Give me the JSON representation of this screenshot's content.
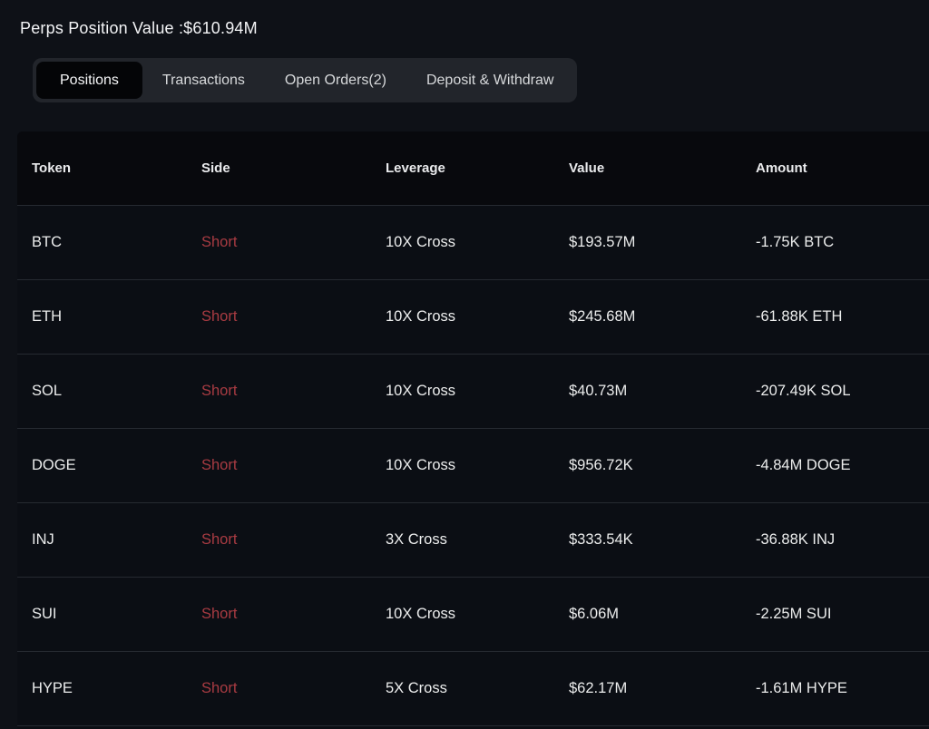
{
  "header": {
    "title": "Perps Position Value :$610.94M"
  },
  "tabs": [
    {
      "label": "Positions",
      "active": true
    },
    {
      "label": "Transactions",
      "active": false
    },
    {
      "label": "Open Orders(2)",
      "active": false
    },
    {
      "label": "Deposit & Withdraw",
      "active": false
    }
  ],
  "table": {
    "columns": [
      "Token",
      "Side",
      "Leverage",
      "Value",
      "Amount"
    ],
    "rows": [
      {
        "token": "BTC",
        "side": "Short",
        "leverage": "10X Cross",
        "value": "$193.57M",
        "amount": "-1.75K BTC"
      },
      {
        "token": "ETH",
        "side": "Short",
        "leverage": "10X Cross",
        "value": "$245.68M",
        "amount": "-61.88K ETH"
      },
      {
        "token": "SOL",
        "side": "Short",
        "leverage": "10X Cross",
        "value": "$40.73M",
        "amount": "-207.49K SOL"
      },
      {
        "token": "DOGE",
        "side": "Short",
        "leverage": "10X Cross",
        "value": "$956.72K",
        "amount": "-4.84M DOGE"
      },
      {
        "token": "INJ",
        "side": "Short",
        "leverage": "3X Cross",
        "value": "$333.54K",
        "amount": "-36.88K INJ"
      },
      {
        "token": "SUI",
        "side": "Short",
        "leverage": "10X Cross",
        "value": "$6.06M",
        "amount": "-2.25M SUI"
      },
      {
        "token": "HYPE",
        "side": "Short",
        "leverage": "5X Cross",
        "value": "$62.17M",
        "amount": "-1.61M HYPE"
      }
    ]
  },
  "colors": {
    "background": "#0e1117",
    "table_bg": "#0b0e14",
    "header_bg": "#08090d",
    "tabbar_bg": "#22252b",
    "active_tab_bg": "#040507",
    "short_red": "#a83b42",
    "divider": "#262a31",
    "text_primary": "#eceded"
  }
}
